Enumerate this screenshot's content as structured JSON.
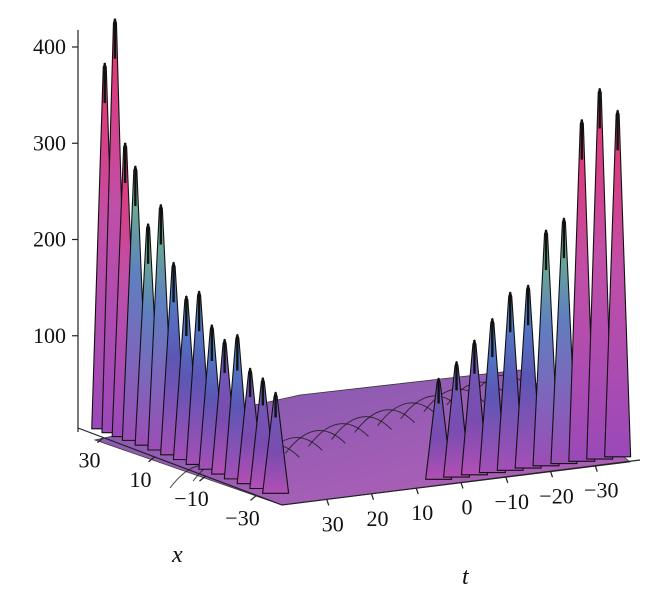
{
  "chart_data": {
    "type": "surface-3d",
    "title": "",
    "z_axis": {
      "label": "",
      "ticks": [
        {
          "value": 100,
          "label": "100"
        },
        {
          "value": 200,
          "label": "200"
        },
        {
          "value": 300,
          "label": "300"
        },
        {
          "value": 400,
          "label": "400"
        }
      ]
    },
    "x_axis": {
      "label": "x",
      "ticks": [
        {
          "value": 30,
          "label": "30"
        },
        {
          "value": 10,
          "label": "10"
        },
        {
          "value": -10,
          "label": "−10"
        },
        {
          "value": -30,
          "label": "−30"
        }
      ]
    },
    "t_axis": {
      "label": "t",
      "ticks": [
        {
          "value": 30,
          "label": "30"
        },
        {
          "value": 20,
          "label": "20"
        },
        {
          "value": 10,
          "label": "10"
        },
        {
          "value": 0,
          "label": "0"
        },
        {
          "value": -10,
          "label": "−10"
        },
        {
          "value": -20,
          "label": "−20"
        },
        {
          "value": -30,
          "label": "−30"
        }
      ]
    },
    "left_wall_peaks": [
      {
        "x": 35,
        "value": 380
      },
      {
        "x": 31,
        "value": 430
      },
      {
        "x": 27,
        "value": 305
      },
      {
        "x": 23,
        "value": 285
      },
      {
        "x": 18,
        "value": 230
      },
      {
        "x": 13,
        "value": 255
      },
      {
        "x": 8,
        "value": 200
      },
      {
        "x": 3,
        "value": 170
      },
      {
        "x": -2,
        "value": 180
      },
      {
        "x": -7,
        "value": 150
      },
      {
        "x": -12,
        "value": 140
      },
      {
        "x": -17,
        "value": 150
      },
      {
        "x": -22,
        "value": 120
      },
      {
        "x": -27,
        "value": 115
      },
      {
        "x": -32,
        "value": 105
      }
    ],
    "right_wall_peaks": [
      {
        "t": -35,
        "value": 360
      },
      {
        "t": -31,
        "value": 385
      },
      {
        "t": -27,
        "value": 355
      },
      {
        "t": -23,
        "value": 255
      },
      {
        "t": -19,
        "value": 245
      },
      {
        "t": -15,
        "value": 190
      },
      {
        "t": -11,
        "value": 185
      },
      {
        "t": -7,
        "value": 160
      },
      {
        "t": -3,
        "value": 140
      },
      {
        "t": 1,
        "value": 120
      },
      {
        "t": 5,
        "value": 105
      }
    ],
    "z_range": [
      0,
      430
    ],
    "colors": {
      "high": "#e8336a",
      "mid_green": "#6fc27a",
      "mid_blue": "#4a8fd0",
      "low_purple": "#5a3fa0",
      "base_magenta": "#b64db8",
      "edge": "#111111"
    }
  }
}
